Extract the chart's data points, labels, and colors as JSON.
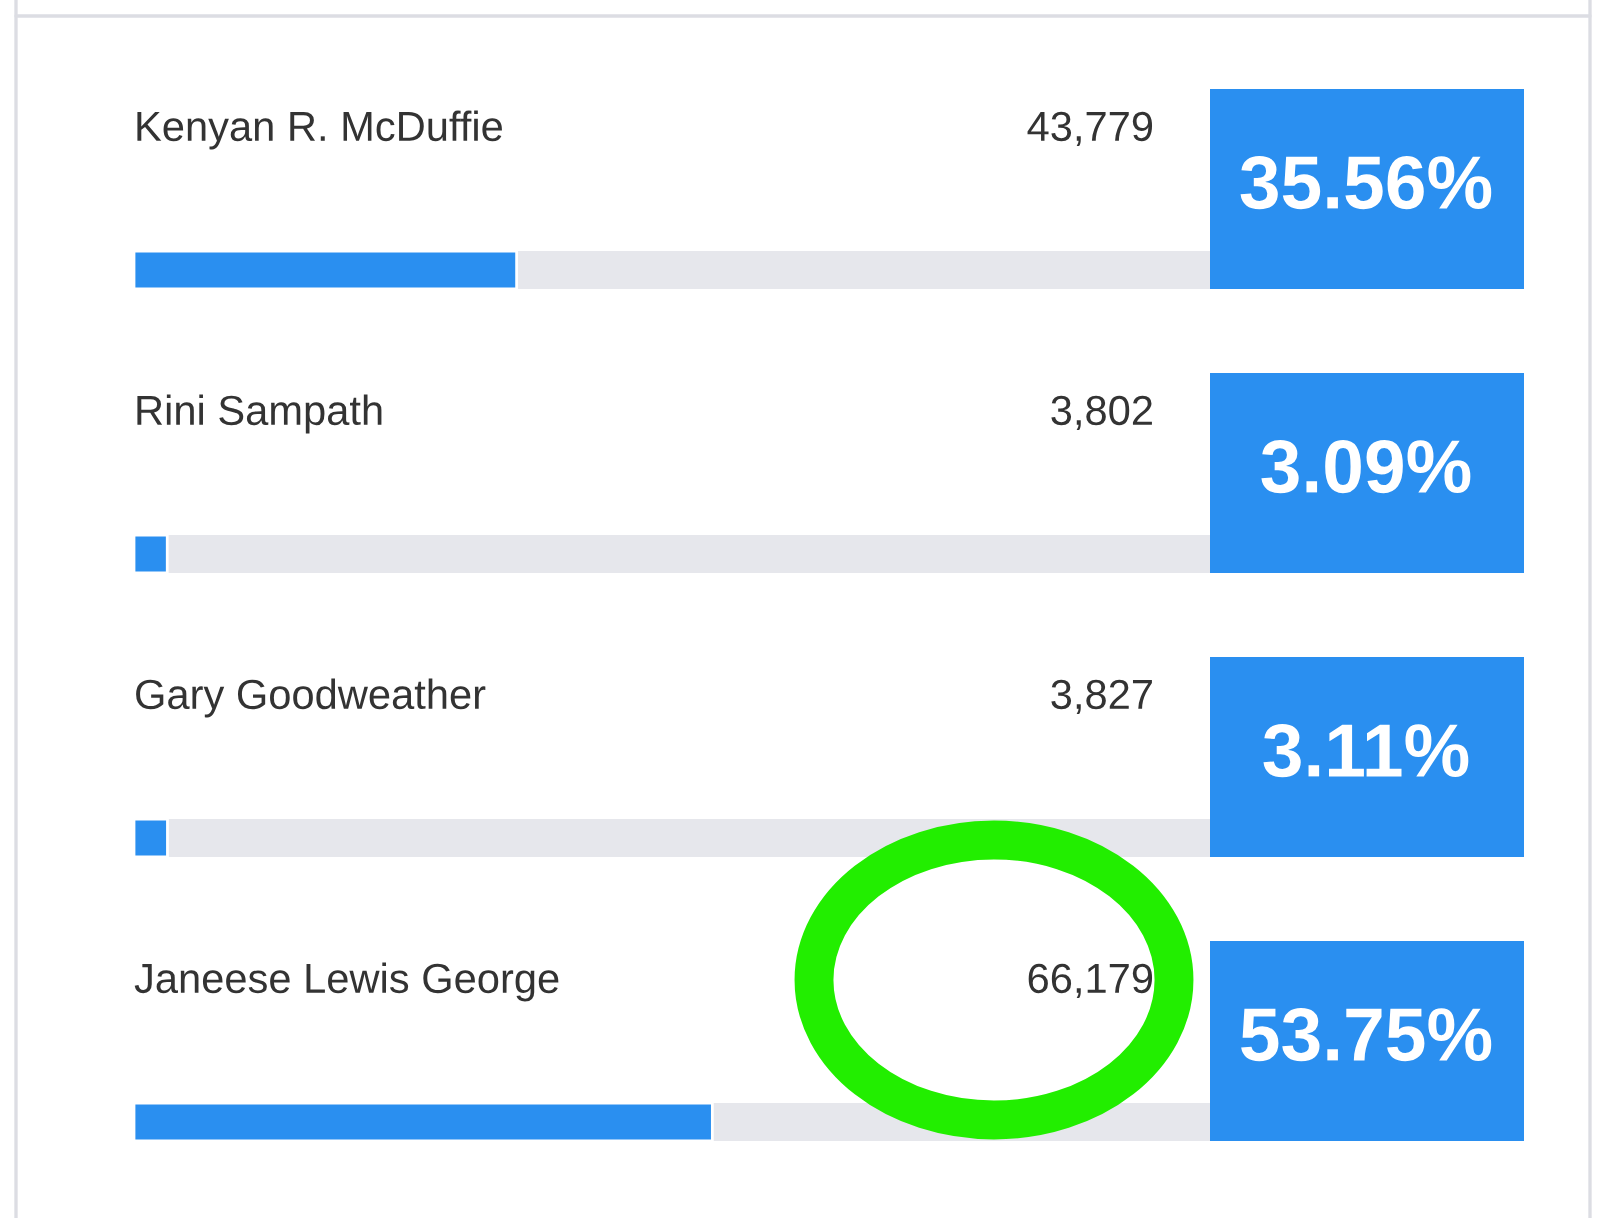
{
  "chart_data": {
    "type": "bar",
    "orientation": "horizontal",
    "categories": [
      "Kenyan R. McDuffie",
      "Rini Sampath",
      "Gary Goodweather",
      "Janeese Lewis George"
    ],
    "values": [
      35.56,
      3.09,
      3.11,
      53.75
    ],
    "value_labels": [
      "35.56%",
      "3.09%",
      "3.11%",
      "53.75%"
    ],
    "color": "#2a8ff0",
    "xlim": [
      0,
      100
    ],
    "annotations": [
      "43,779",
      "3,802",
      "3,827",
      "66,179"
    ]
  }
}
